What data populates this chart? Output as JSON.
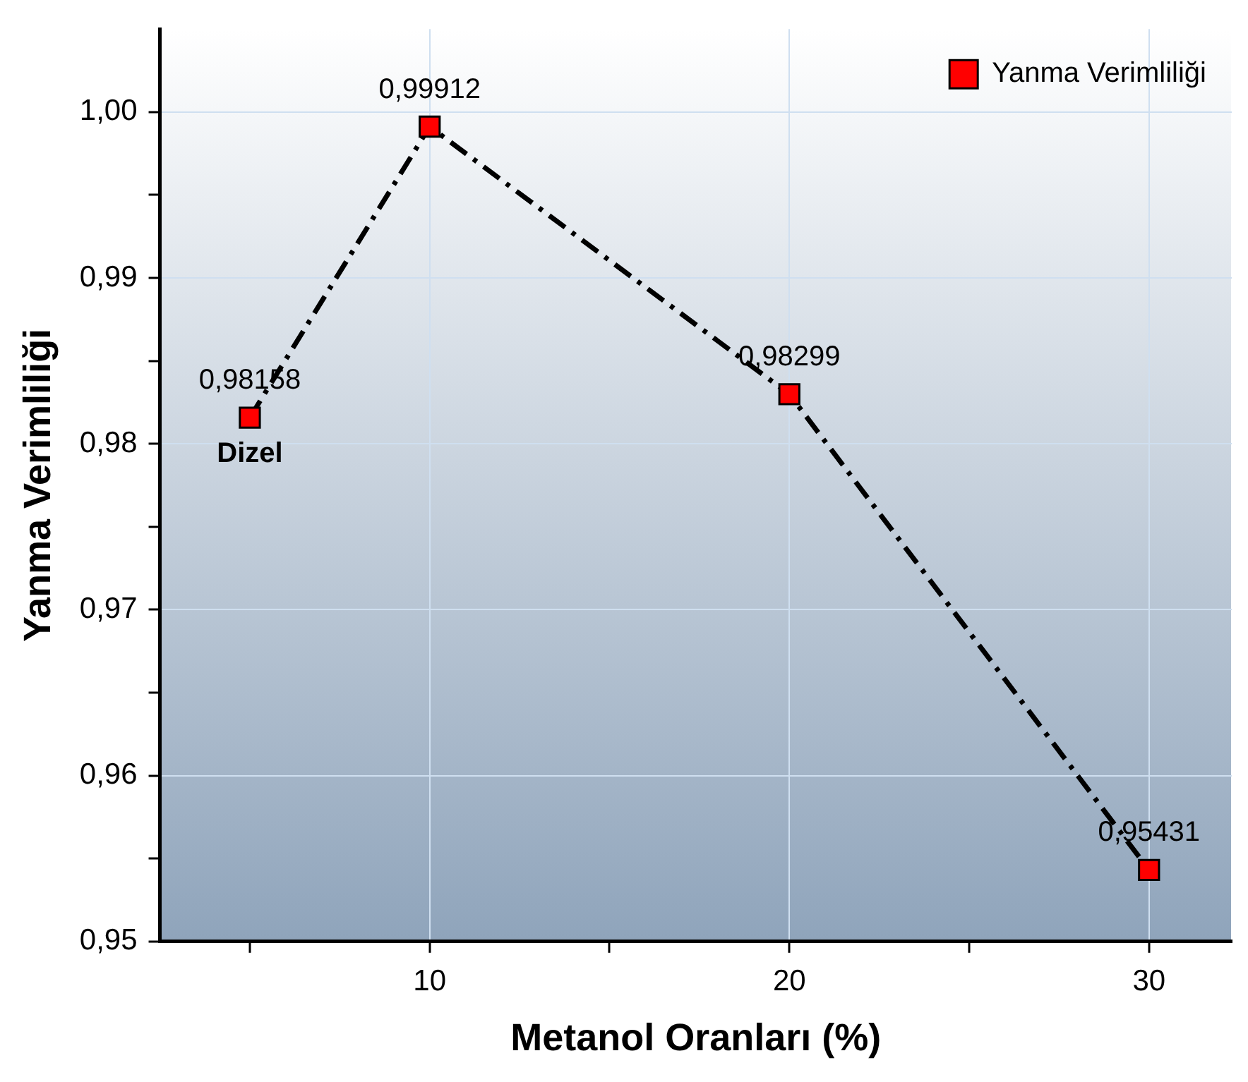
{
  "chart_data": {
    "type": "line",
    "xlabel": "Metanol Oranları (%)",
    "ylabel": "Yanma Verimliliği",
    "x": [
      5,
      10,
      20,
      30
    ],
    "series": [
      {
        "name": "Yanma Verimliliği",
        "color": "#ff0000",
        "values": [
          0.98158,
          0.99912,
          0.98299,
          0.95431
        ],
        "value_labels": [
          "0,98158",
          "0,99912",
          "0,98299",
          "0,95431"
        ]
      }
    ],
    "xlim": [
      2.5,
      32.3
    ],
    "ylim": [
      0.95,
      1.005
    ],
    "xticks": [
      {
        "value": 5,
        "label": null
      },
      10,
      {
        "value": 15,
        "label": null
      },
      20,
      {
        "value": 25,
        "label": null
      },
      30
    ],
    "yticks": [
      {
        "value": 0.95,
        "label": "0,95"
      },
      {
        "value": 0.955,
        "label": null
      },
      {
        "value": 0.96,
        "label": "0,96"
      },
      {
        "value": 0.965,
        "label": null
      },
      {
        "value": 0.97,
        "label": "0,97"
      },
      {
        "value": 0.975,
        "label": null
      },
      {
        "value": 0.98,
        "label": "0,98"
      },
      {
        "value": 0.985,
        "label": null
      },
      {
        "value": 0.99,
        "label": "0,99"
      },
      {
        "value": 0.995,
        "label": null
      },
      {
        "value": 1.0,
        "label": "1,00"
      }
    ],
    "annotations": [
      {
        "text": "Dizel",
        "x": 5,
        "y": 0.98158
      }
    ],
    "grid": true,
    "legend": "top right",
    "marker": "square",
    "line_style": "dashed"
  }
}
